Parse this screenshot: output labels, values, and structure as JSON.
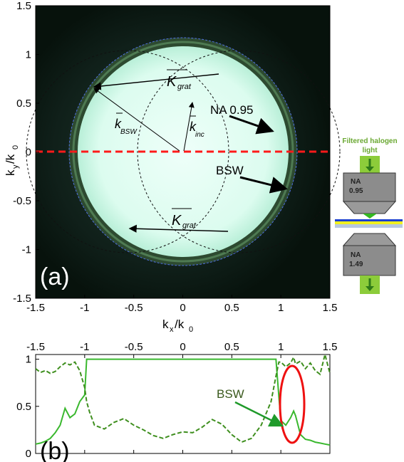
{
  "panel_a": {
    "label": "(a)",
    "x_label": "k",
    "x_label_sub": "x",
    "x_label_den": "/k",
    "x_label_den_sub": "0",
    "y_label": "k",
    "y_label_sub": "y",
    "y_label_den": "/k",
    "y_label_den_sub": "0",
    "x_ticks": [
      "-1.5",
      "-1",
      "-0.5",
      "0",
      "0.5",
      "1",
      "1.5"
    ],
    "y_ticks": [
      "1.5",
      "1",
      "0.5",
      "0",
      "-0.5",
      "-1",
      "-1.5"
    ],
    "k_grat_top_main": "K",
    "k_grat_top_sub": "grat",
    "k_grat_bottom_main": "K",
    "k_grat_bottom_sub": "grat",
    "k_bsw_main": "k",
    "k_bsw_sub": "BSW",
    "k_inc_main": "k",
    "k_inc_sub": "inc",
    "na_label": "NA 0.95",
    "bsw_label": "BSW"
  },
  "setup": {
    "title_line1": "Filtered halogen",
    "title_line2": "light",
    "top_objective_na": "NA",
    "top_objective_value": "0.95",
    "bottom_objective_na": "NA",
    "bottom_objective_value": "1.49"
  },
  "panel_b": {
    "label": "(b)",
    "bsw_label": "BSW",
    "x_ticks": [
      "-1.5",
      "-1",
      "-0.5",
      "0",
      "0.5",
      "1",
      "1.5"
    ],
    "y_ticks": [
      "1",
      "0.5",
      "0"
    ]
  },
  "chart_data": {
    "type": "line",
    "x": [
      -1.5,
      -1.45,
      -1.4,
      -1.35,
      -1.3,
      -1.25,
      -1.2,
      -1.15,
      -1.1,
      -1.05,
      -1.0,
      -0.98,
      -0.95,
      -0.9,
      -0.8,
      -0.7,
      -0.6,
      -0.5,
      -0.4,
      -0.3,
      -0.2,
      -0.1,
      0,
      0.1,
      0.2,
      0.3,
      0.4,
      0.5,
      0.6,
      0.7,
      0.8,
      0.9,
      0.95,
      0.98,
      1.0,
      1.05,
      1.1,
      1.13,
      1.15,
      1.2,
      1.25,
      1.3,
      1.35,
      1.4,
      1.45,
      1.5
    ],
    "series": [
      {
        "style": "solid",
        "values": [
          0.1,
          0.11,
          0.13,
          0.16,
          0.22,
          0.3,
          0.48,
          0.38,
          0.42,
          0.55,
          0.62,
          1.0,
          1.0,
          1.0,
          1.0,
          1.0,
          1.0,
          1.0,
          1.0,
          1.0,
          1.0,
          1.0,
          1.0,
          1.0,
          1.0,
          1.0,
          1.0,
          1.0,
          1.0,
          1.0,
          1.0,
          1.0,
          1.0,
          0.6,
          0.35,
          0.3,
          0.38,
          0.45,
          0.4,
          0.2,
          0.15,
          0.14,
          0.12,
          0.11,
          0.1,
          0.09
        ]
      },
      {
        "style": "dashed",
        "values": [
          0.9,
          0.86,
          0.88,
          0.85,
          0.87,
          0.92,
          0.96,
          0.94,
          0.97,
          0.88,
          0.7,
          0.55,
          0.44,
          0.3,
          0.26,
          0.33,
          0.37,
          0.3,
          0.25,
          0.19,
          0.16,
          0.2,
          0.23,
          0.22,
          0.28,
          0.36,
          0.31,
          0.2,
          0.12,
          0.16,
          0.3,
          0.55,
          0.82,
          0.97,
          0.97,
          0.92,
          0.96,
          1.02,
          0.95,
          0.98,
          0.9,
          0.96,
          0.88,
          0.84,
          1.05,
          0.85
        ]
      }
    ],
    "xlim": [
      -1.5,
      1.5
    ],
    "ylim": [
      0,
      1.05
    ]
  },
  "colors": {
    "pupil_fill": "#e6fff5",
    "bsw_ring": "#2a4a2a",
    "red_dash": "#ff1a1a",
    "blue_dash": "#4f6fe0",
    "solid_line": "#3ab82e",
    "dashed_line": "#3f8f1f",
    "ellipse": "#ee1111",
    "arrow_green": "#1f9a2a"
  }
}
